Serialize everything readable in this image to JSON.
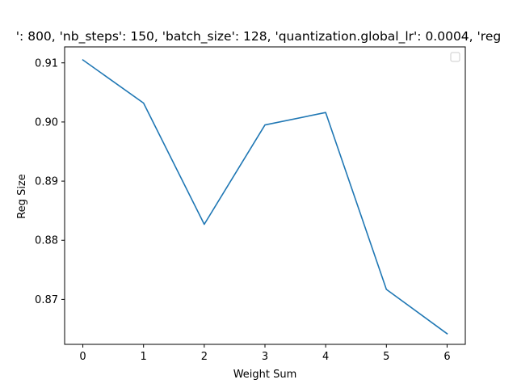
{
  "chart_data": {
    "type": "line",
    "title": "': 800, 'nb_steps': 150, 'batch_size': 128, 'quantization.global_lr': 0.0004, 'reg",
    "xlabel": "Weight Sum",
    "ylabel": "Reg Size",
    "x": [
      0,
      1,
      2,
      3,
      4,
      5,
      6
    ],
    "series": [
      {
        "values": [
          0.9105,
          0.9032,
          0.8827,
          0.8995,
          0.9016,
          0.8717,
          0.8642
        ],
        "color": "#1f77b4"
      }
    ],
    "xlim": [
      -0.3,
      6.3
    ],
    "ylim": [
      0.8624,
      0.9127
    ],
    "xticks": [
      0,
      1,
      2,
      3,
      4,
      5,
      6
    ],
    "yticks": [
      0.87,
      0.88,
      0.89,
      0.9,
      0.91
    ],
    "ytick_labels": [
      "0.87",
      "0.88",
      "0.89",
      "0.90",
      "0.91"
    ],
    "grid": false,
    "legend": "top-right"
  }
}
